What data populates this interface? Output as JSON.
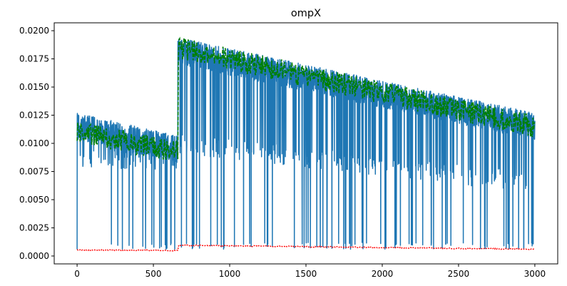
{
  "chart_data": {
    "type": "line",
    "title": "ompX",
    "xlabel": "",
    "ylabel": "",
    "xlim": [
      -150,
      3150
    ],
    "ylim": [
      -0.0007,
      0.0207
    ],
    "x_ticks": [
      0,
      500,
      1000,
      1500,
      2000,
      2500,
      3000
    ],
    "x_tick_labels": [
      "0",
      "500",
      "1000",
      "1500",
      "2000",
      "2500",
      "3000"
    ],
    "y_ticks": [
      0.0,
      0.0025,
      0.005,
      0.0075,
      0.01,
      0.0125,
      0.015,
      0.0175,
      0.02
    ],
    "y_tick_labels": [
      "0.0000",
      "0.0025",
      "0.0050",
      "0.0075",
      "0.0100",
      "0.0125",
      "0.0150",
      "0.0175",
      "0.0200"
    ],
    "grid": false,
    "legend": "none",
    "x_range": [
      0,
      3000
    ],
    "regime_change_x": 660,
    "series": [
      {
        "name": "series-blue",
        "style": "solid",
        "color": "#1f77b4",
        "description": "noisy upper band with frequent spikes down to lower band",
        "upper_band": {
          "x": [
            0,
            660,
            661,
            3000
          ],
          "y": [
            0.0115,
            0.0095,
            0.0182,
            0.0115
          ]
        },
        "noise_amplitude": 0.0012,
        "dip_band": {
          "x": [
            0,
            660,
            661,
            3000
          ],
          "y": [
            0.0088,
            0.0085,
            0.01,
            0.0065
          ]
        },
        "dip_floor": 0.0006
      },
      {
        "name": "series-green",
        "style": "dashed",
        "color": "#008000",
        "x": [
          0,
          660,
          661,
          3000
        ],
        "y": [
          0.011,
          0.0093,
          0.0185,
          0.0115
        ],
        "noise_amplitude": 0.001
      },
      {
        "name": "series-red",
        "style": "dotted",
        "color": "#ff0000",
        "x": [
          0,
          660,
          661,
          3000
        ],
        "y": [
          0.00055,
          0.00048,
          0.00095,
          0.0006
        ],
        "noise_amplitude": 5e-05
      }
    ]
  }
}
